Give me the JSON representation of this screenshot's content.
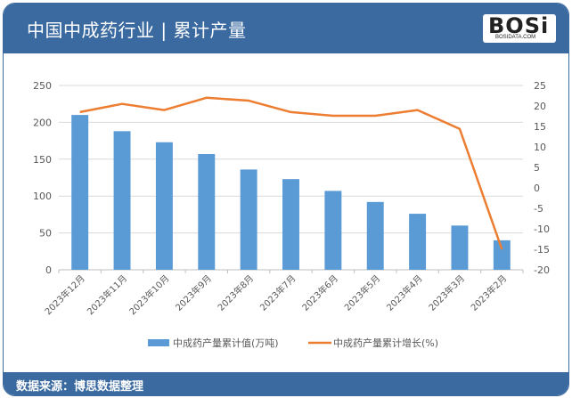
{
  "header": {
    "title": "中国中成药行业 | 累计产量",
    "logo_text": "BOSi",
    "logo_sub": "BOSIDATA.COM"
  },
  "footer": {
    "source": "数据来源：博思数据整理"
  },
  "legend": {
    "bar_label": "中成药产量累计值(万吨)",
    "line_label": "中成药产量累计增长(%)"
  },
  "colors": {
    "bar": "#5b9bd5",
    "line": "#ed7d31",
    "header": "#3a6aa0",
    "grid": "#d9d9d9",
    "axis_text": "#595959"
  },
  "chart_data": {
    "type": "bar",
    "title": "中国中成药行业 | 累计产量",
    "categories": [
      "2023年12月",
      "2023年11月",
      "2023年10月",
      "2023年9月",
      "2023年8月",
      "2023年7月",
      "2023年6月",
      "2023年5月",
      "2023年4月",
      "2023年3月",
      "2023年2月"
    ],
    "series": [
      {
        "name": "中成药产量累计值(万吨)",
        "type": "bar",
        "axis": "left",
        "values": [
          210,
          188,
          173,
          157,
          136,
          123,
          107,
          92,
          76,
          60,
          40
        ]
      },
      {
        "name": "中成药产量累计增长(%)",
        "type": "line",
        "axis": "right",
        "values": [
          18.5,
          20.5,
          19.0,
          22.0,
          21.3,
          18.5,
          17.6,
          17.6,
          19.0,
          14.4,
          -15.0
        ]
      }
    ],
    "left_axis": {
      "min": 0,
      "max": 250,
      "ticks": [
        0,
        50,
        100,
        150,
        200,
        250
      ]
    },
    "right_axis": {
      "min": -20,
      "max": 25,
      "ticks": [
        -20,
        -15,
        -10,
        -5,
        0,
        5,
        10,
        15,
        20,
        25
      ]
    },
    "grid": true,
    "legend_position": "bottom",
    "xlabel": "",
    "ylabel": ""
  }
}
